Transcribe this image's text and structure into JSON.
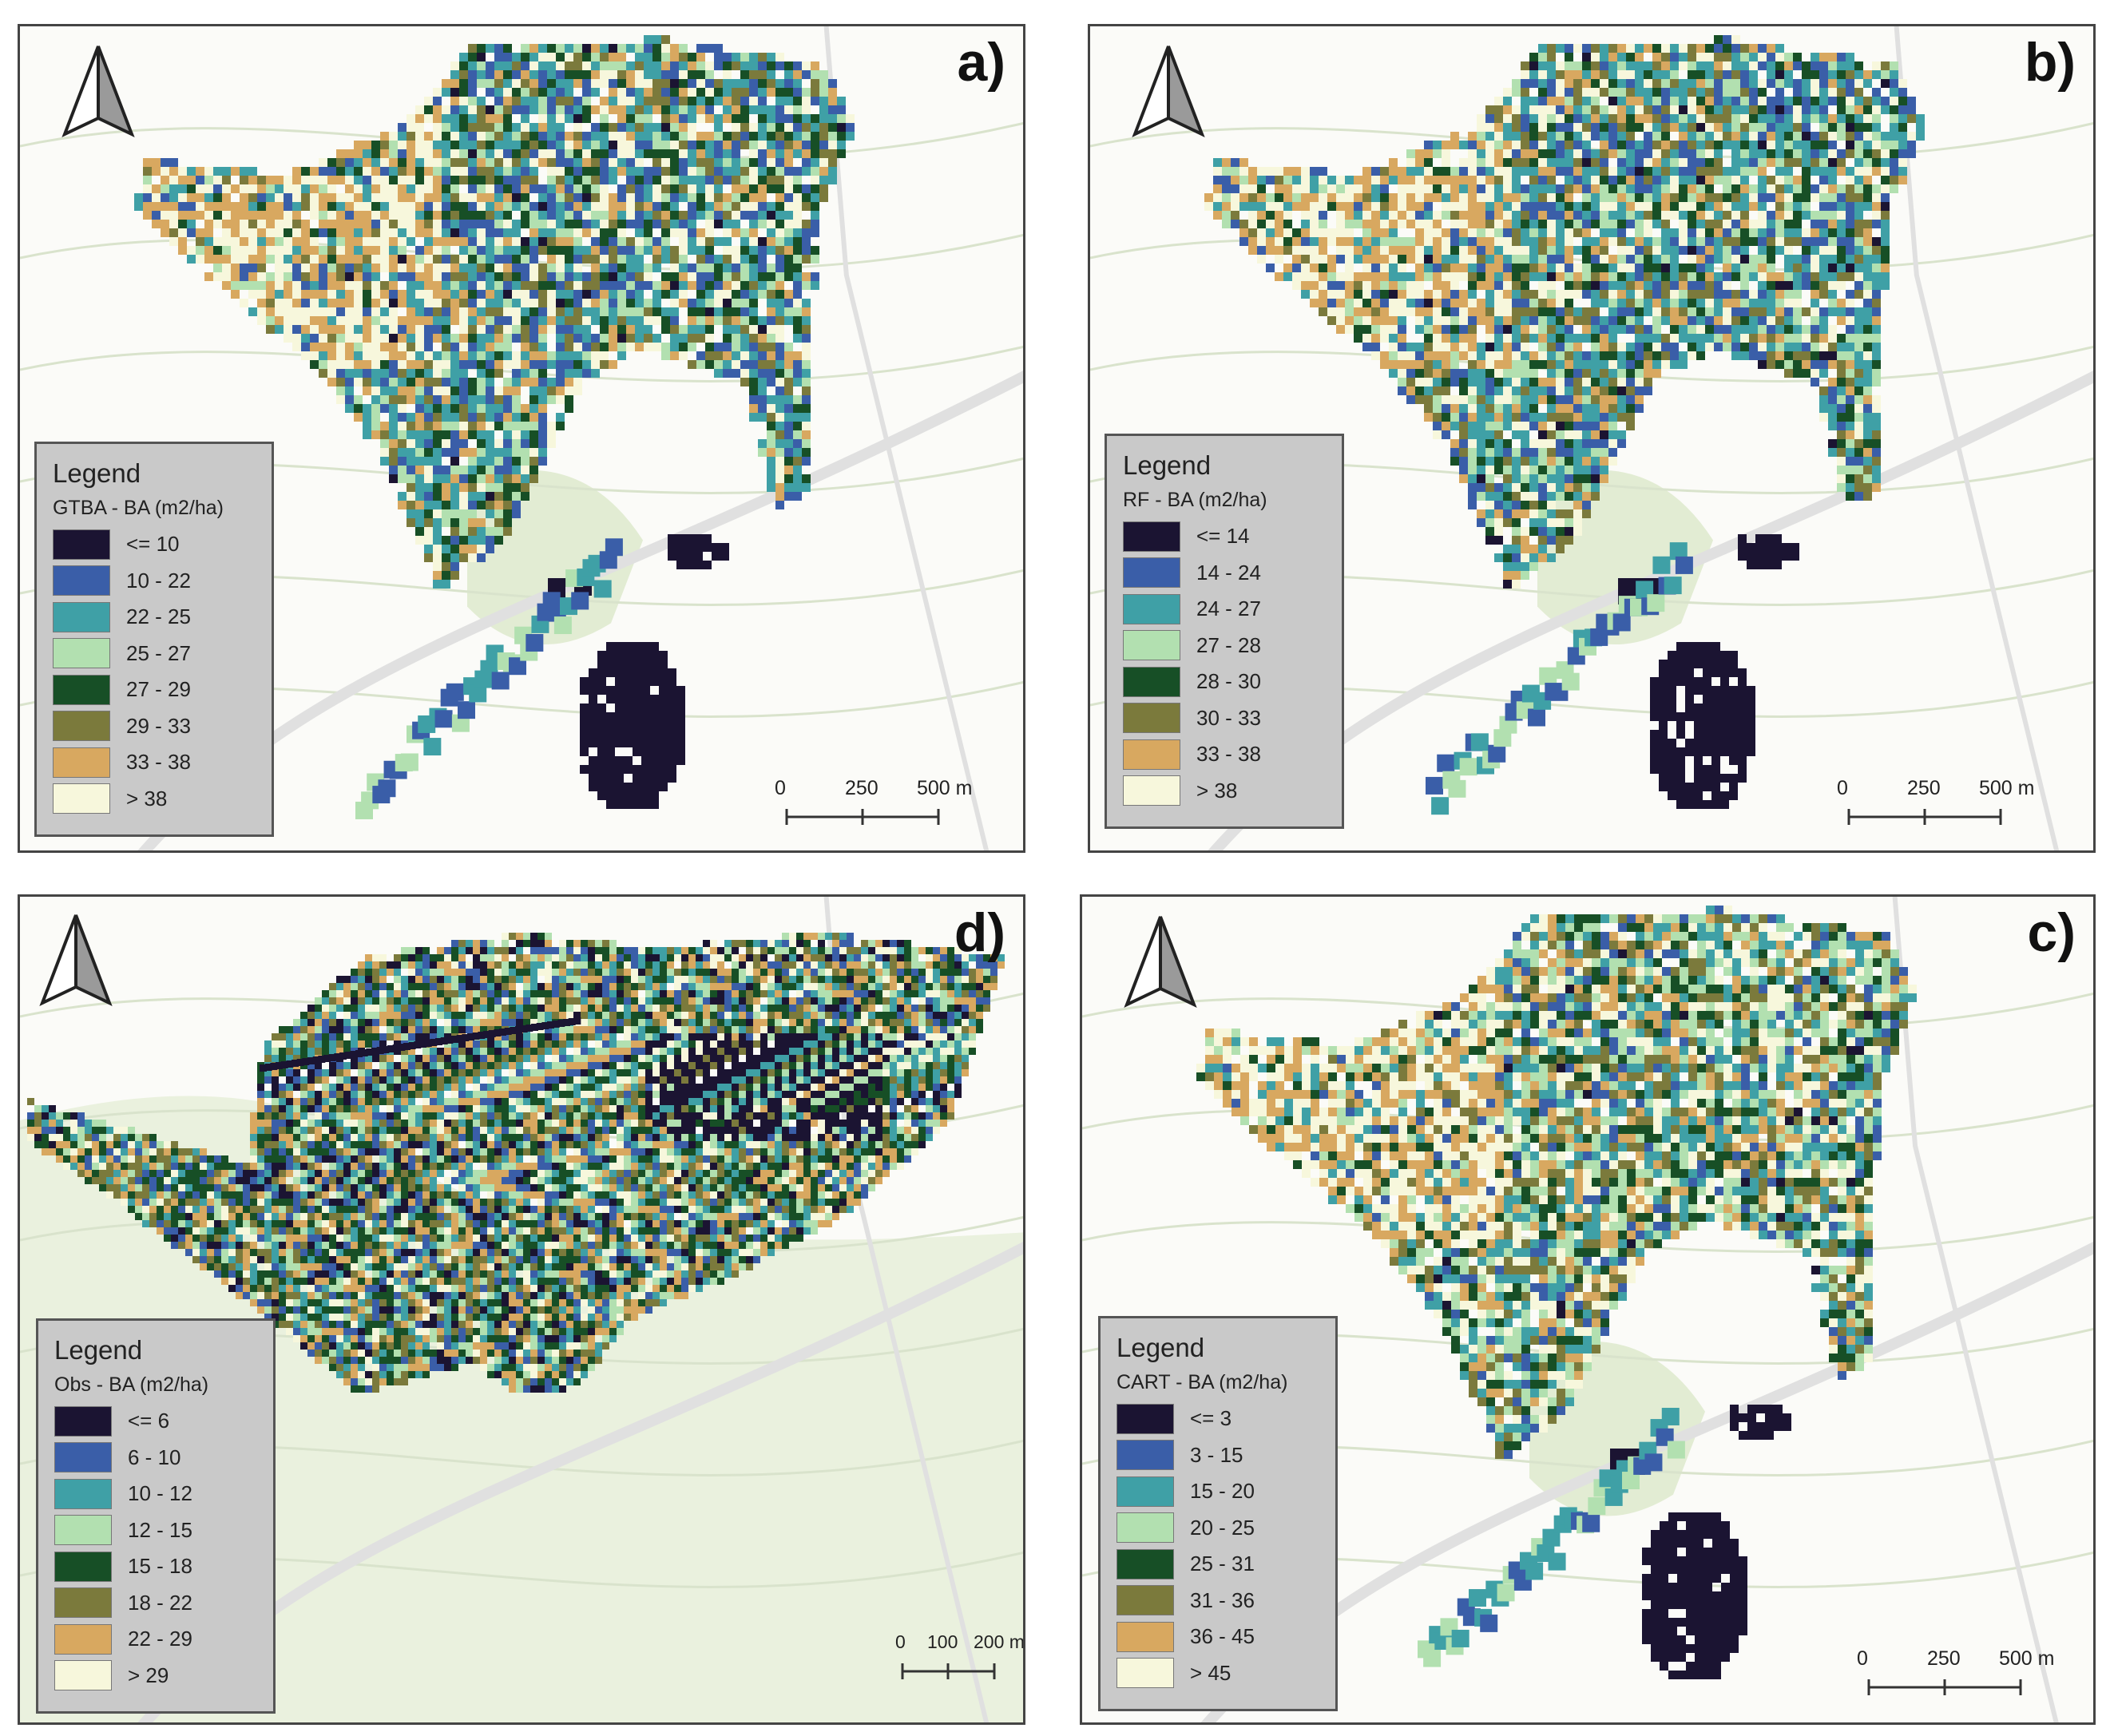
{
  "panels": [
    {
      "id": "a",
      "label": "a)",
      "legend_title": "Legend",
      "legend_subtitle": "GTBA - BA (m2/ha)",
      "classes": [
        "<= 10",
        "10 - 22",
        "22 - 25",
        "25 - 27",
        "27 - 29",
        "29 - 33",
        "33 - 38",
        "> 38"
      ],
      "scale": [
        "0",
        "250",
        "500 m"
      ]
    },
    {
      "id": "b",
      "label": "b)",
      "legend_title": "Legend",
      "legend_subtitle": "RF - BA (m2/ha)",
      "classes": [
        "<= 14",
        "14 - 24",
        "24 - 27",
        "27 - 28",
        "28 - 30",
        "30 - 33",
        "33 - 38",
        "> 38"
      ],
      "scale": [
        "0",
        "250",
        "500 m"
      ]
    },
    {
      "id": "d",
      "label": "d)",
      "legend_title": "Legend",
      "legend_subtitle": "Obs - BA (m2/ha)",
      "classes": [
        "<= 6",
        "6 - 10",
        "10 - 12",
        "12 - 15",
        "15 - 18",
        "18 - 22",
        "22 - 29",
        "> 29"
      ],
      "scale": [
        "0",
        "100",
        "200 m"
      ]
    },
    {
      "id": "c",
      "label": "c)",
      "legend_title": "Legend",
      "legend_subtitle": "CART - BA (m2/ha)",
      "classes": [
        "<= 3",
        "3 - 15",
        "15 - 20",
        "20 - 25",
        "25 - 31",
        "31 - 36",
        "36 - 45",
        "> 45"
      ],
      "scale": [
        "0",
        "250",
        "500 m"
      ]
    }
  ],
  "class_colors": [
    "#1b1432",
    "#3a5ea8",
    "#3fa0a6",
    "#b2e0b0",
    "#174f26",
    "#7b7a3c",
    "#d8a860",
    "#f7f7dc"
  ],
  "map_colors": {
    "background": "#fbfbf8",
    "road": "#e0e0e0",
    "contour": "#d9e3cc",
    "green_area": "#dce9c9"
  }
}
